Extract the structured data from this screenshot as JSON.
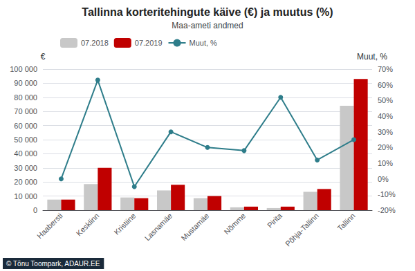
{
  "chart_data": {
    "type": "bar",
    "title": "Tallinna korteritehingute käive (€) ja muutus (%)",
    "subtitle": "Maa-ameti andmed",
    "ylabel": "€",
    "y2label": "Muut, %",
    "categories": [
      "Haabersti",
      "Kesklinn",
      "Kristiine",
      "Lasnamäe",
      "Mustamäe",
      "Nõmme",
      "Pirita",
      "Põhja-Tallinn",
      "Tallinn"
    ],
    "series": [
      {
        "name": "07.2018",
        "type": "bar",
        "color": "#c8c8c8",
        "values": [
          7500,
          18500,
          9000,
          14000,
          8500,
          2000,
          1500,
          13000,
          74000
        ]
      },
      {
        "name": "07.2019",
        "type": "bar",
        "color": "#c00000",
        "values": [
          7500,
          30000,
          8500,
          18000,
          10000,
          2500,
          2500,
          15000,
          93000
        ]
      },
      {
        "name": "Muut, %",
        "type": "line",
        "axis": "y2",
        "color": "#2e7d8a",
        "marker": "circle",
        "values": [
          0.0,
          63.0,
          -5.0,
          30.0,
          20.0,
          18.0,
          52.0,
          12.0,
          25.0
        ]
      }
    ],
    "ylim": [
      0,
      100000
    ],
    "yticks": [
      0,
      {
        "value": 10000,
        "label": "10 000"
      },
      {
        "value": 20000,
        "label": "20 000"
      },
      {
        "value": 30000,
        "label": "30 000"
      },
      {
        "value": 40000,
        "label": "40 000"
      },
      {
        "value": 50000,
        "label": "50 000"
      },
      {
        "value": 60000,
        "label": "60 000"
      },
      {
        "value": 70000,
        "label": "70 000"
      },
      {
        "value": 80000,
        "label": "80 000"
      },
      {
        "value": 90000,
        "label": "90 000"
      },
      {
        "value": 100000,
        "label": "100 000"
      }
    ],
    "y2lim": [
      -20,
      70
    ],
    "y2ticks": [
      {
        "value": -20,
        "label": "-20%"
      },
      {
        "value": -10,
        "label": "-10%"
      },
      {
        "value": 0,
        "label": "0%"
      },
      {
        "value": 10,
        "label": "10%"
      },
      {
        "value": 20,
        "label": "20%"
      },
      {
        "value": 30,
        "label": "30%"
      },
      {
        "value": 40,
        "label": "40%"
      },
      {
        "value": 50,
        "label": "50%"
      },
      {
        "value": 60,
        "label": "60%"
      },
      {
        "value": 70,
        "label": "70%"
      }
    ],
    "grid": true,
    "legend": "upper left",
    "annotations": [
      "© Tõnu Toompark, ADAUR.EE"
    ]
  }
}
